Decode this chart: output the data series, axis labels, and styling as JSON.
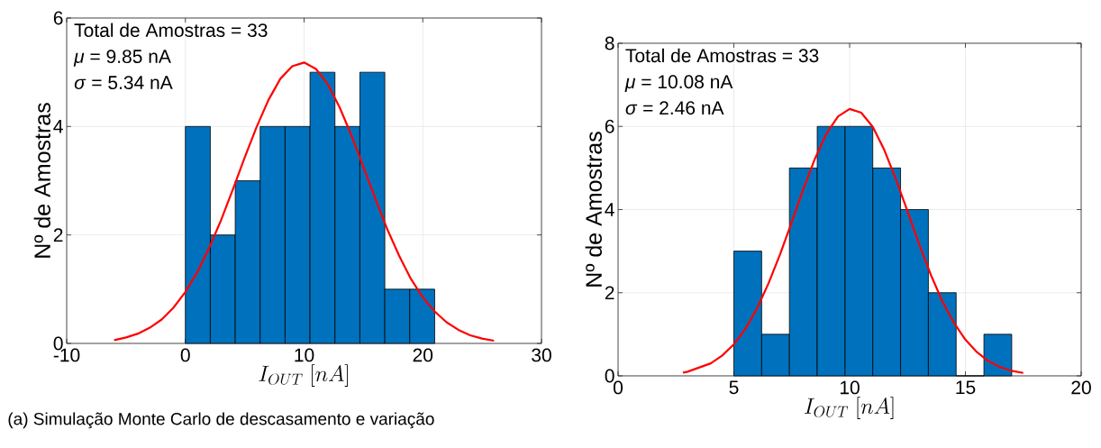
{
  "chart_data": [
    {
      "type": "histogram",
      "xlabel": "I_{OUT}\\ [nA]",
      "ylabel": "Nº de Amostras",
      "xlim": [
        -10,
        30
      ],
      "xticks": [
        -10,
        0,
        10,
        20,
        30
      ],
      "ylim": [
        0,
        6
      ],
      "yticks": [
        0,
        2,
        4,
        6
      ],
      "grid": true,
      "annotations": [
        "Total de Amostras = 33",
        "*μ* = 9.85 nA",
        "*σ* = 5.34 nA",
        "(a) Simulação Monte Carlo de descasamento e variação"
      ],
      "series": [
        {
          "type": "histogram",
          "color": "#0072bd",
          "bins": [
            0,
            2.1,
            4.2,
            6.3,
            8.4,
            10.5,
            12.6,
            14.7,
            16.8,
            18.9,
            21.0
          ],
          "values": [
            4,
            2,
            3,
            4,
            4,
            5,
            4,
            5,
            1,
            1
          ]
        },
        {
          "type": "line",
          "color": "#ff0000",
          "x": [
            -6,
            -5,
            -4,
            -3,
            -2,
            -1,
            0,
            1,
            2,
            3,
            4,
            5,
            6,
            7,
            8,
            9,
            10,
            11,
            12,
            13,
            14,
            15,
            16,
            17,
            18,
            19,
            20,
            21,
            22,
            23,
            24,
            25,
            26
          ],
          "values": [
            0.06,
            0.11,
            0.18,
            0.29,
            0.44,
            0.66,
            0.95,
            1.31,
            1.76,
            2.27,
            2.84,
            3.43,
            3.99,
            4.49,
            4.88,
            5.11,
            5.18,
            5.06,
            4.78,
            4.35,
            3.83,
            3.25,
            2.67,
            2.11,
            1.62,
            1.19,
            0.85,
            0.59,
            0.39,
            0.25,
            0.15,
            0.09,
            0.05
          ]
        }
      ]
    },
    {
      "type": "histogram",
      "xlabel": "I_{OUT}\\ [nA]",
      "ylabel": "Nº de Amostras",
      "xlim": [
        0,
        20
      ],
      "xticks": [
        0,
        5,
        10,
        15,
        20
      ],
      "ylim": [
        0,
        8
      ],
      "yticks": [
        0,
        2,
        4,
        6,
        8
      ],
      "grid": true,
      "annotations": [
        "Total de Amostras = 33",
        "*μ* = 10.08 nA",
        "*σ* = 2.46 nA"
      ],
      "series": [
        {
          "type": "histogram",
          "color": "#0072bd",
          "bins": [
            5,
            6.2,
            7.4,
            8.6,
            9.8,
            11,
            12.2,
            13.4,
            14.6,
            15.8,
            17
          ],
          "values": [
            3,
            1,
            5,
            6,
            6,
            5,
            4,
            2,
            0,
            1
          ]
        },
        {
          "type": "line",
          "color": "#ff0000",
          "x": [
            2.8,
            3,
            4,
            4.5,
            5,
            5.5,
            6,
            6.5,
            7,
            7.5,
            8,
            8.5,
            9,
            9.5,
            10,
            10.5,
            11,
            11.5,
            12,
            12.5,
            13,
            13.5,
            14,
            14.5,
            15,
            15.5,
            16,
            16.5,
            17,
            17.5
          ],
          "values": [
            0.08,
            0.1,
            0.3,
            0.49,
            0.76,
            1.13,
            1.62,
            2.23,
            2.93,
            3.7,
            4.49,
            5.22,
            5.83,
            6.24,
            6.42,
            6.33,
            5.99,
            5.43,
            4.73,
            3.96,
            3.17,
            2.44,
            1.8,
            1.28,
            0.87,
            0.57,
            0.35,
            0.21,
            0.12,
            0.07
          ]
        }
      ]
    }
  ]
}
